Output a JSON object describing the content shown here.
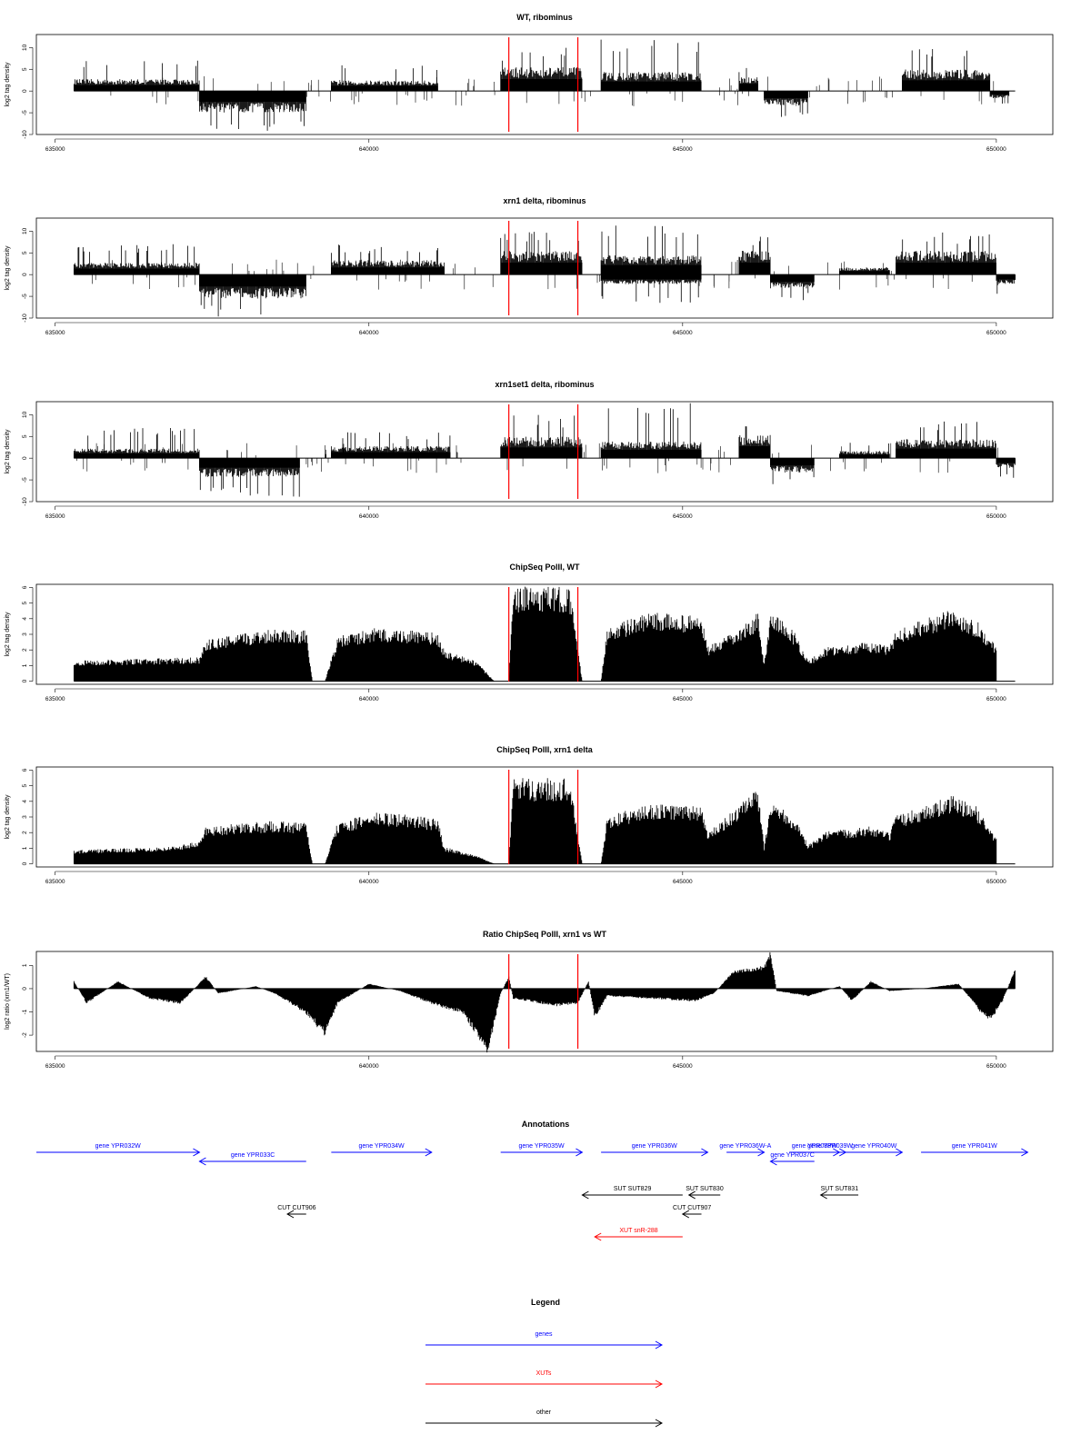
{
  "figure": {
    "annotations_title": "Annotations",
    "legend_title": "Legend"
  },
  "chart_data": [
    {
      "type": "bar",
      "title": "WT, ribominus",
      "ylabel": "log2 tag density",
      "xlim": [
        634700,
        650900
      ],
      "ylim": [
        -10,
        13
      ],
      "yticks": [
        -10,
        -5,
        0,
        5,
        10
      ],
      "xticks": [
        635000,
        640000,
        645000,
        650000
      ],
      "red_lines": [
        642230,
        643330
      ],
      "segments": [
        {
          "start": 635300,
          "end": 637300,
          "strand": "+",
          "mean": 2.5,
          "max": 7
        },
        {
          "start": 637300,
          "end": 639000,
          "strand": "-",
          "mean": 4.5,
          "max": 10
        },
        {
          "start": 639400,
          "end": 641100,
          "strand": "+",
          "mean": 2.2,
          "max": 6
        },
        {
          "start": 642100,
          "end": 643400,
          "strand": "+",
          "mean": 5,
          "max": 10
        },
        {
          "start": 643700,
          "end": 645300,
          "strand": "+",
          "mean": 4,
          "max": 12
        },
        {
          "start": 645900,
          "end": 646200,
          "strand": "+",
          "mean": 3,
          "max": 6
        },
        {
          "start": 646300,
          "end": 647000,
          "strand": "-",
          "mean": 3,
          "max": 6
        },
        {
          "start": 648500,
          "end": 649900,
          "strand": "+",
          "mean": 4.5,
          "max": 10
        },
        {
          "start": 649900,
          "end": 650200,
          "strand": "-",
          "mean": 1.5,
          "max": 3
        }
      ]
    },
    {
      "type": "bar",
      "title": "xrn1 delta, ribominus",
      "ylabel": "log2 tag density",
      "xlim": [
        634700,
        650900
      ],
      "ylim": [
        -10,
        13
      ],
      "yticks": [
        -10,
        -5,
        0,
        5,
        10
      ],
      "xticks": [
        635000,
        640000,
        645000,
        650000
      ],
      "red_lines": [
        642230,
        643330
      ],
      "segments": [
        {
          "start": 635300,
          "end": 637300,
          "strand": "+",
          "mean": 2.5,
          "max": 7
        },
        {
          "start": 637300,
          "end": 639000,
          "strand": "-",
          "mean": 5,
          "max": 10
        },
        {
          "start": 639400,
          "end": 641200,
          "strand": "+",
          "mean": 3,
          "max": 7
        },
        {
          "start": 642100,
          "end": 643400,
          "strand": "+",
          "mean": 5,
          "max": 10
        },
        {
          "start": 643700,
          "end": 645300,
          "strand": "+",
          "mean": 4,
          "max": 12
        },
        {
          "start": 643700,
          "end": 645300,
          "strand": "-",
          "mean": 2,
          "max": 7
        },
        {
          "start": 645900,
          "end": 646400,
          "strand": "+",
          "mean": 5,
          "max": 9
        },
        {
          "start": 646400,
          "end": 647100,
          "strand": "-",
          "mean": 3,
          "max": 6
        },
        {
          "start": 647500,
          "end": 648300,
          "strand": "+",
          "mean": 1.5,
          "max": 4
        },
        {
          "start": 648400,
          "end": 650000,
          "strand": "+",
          "mean": 5,
          "max": 10
        },
        {
          "start": 650000,
          "end": 650300,
          "strand": "-",
          "mean": 2,
          "max": 5
        }
      ]
    },
    {
      "type": "bar",
      "title": "xrn1set1 delta, ribominus",
      "ylabel": "log2 tag density",
      "xlim": [
        634700,
        650900
      ],
      "ylim": [
        -10,
        13
      ],
      "yticks": [
        -10,
        -5,
        0,
        5,
        10
      ],
      "xticks": [
        635000,
        640000,
        645000,
        650000
      ],
      "red_lines": [
        642230,
        643330
      ],
      "segments": [
        {
          "start": 635300,
          "end": 637300,
          "strand": "+",
          "mean": 2,
          "max": 7
        },
        {
          "start": 637300,
          "end": 638900,
          "strand": "-",
          "mean": 4,
          "max": 9
        },
        {
          "start": 639400,
          "end": 641300,
          "strand": "+",
          "mean": 2.5,
          "max": 6
        },
        {
          "start": 642100,
          "end": 643400,
          "strand": "+",
          "mean": 4.5,
          "max": 10
        },
        {
          "start": 643700,
          "end": 645300,
          "strand": "+",
          "mean": 3.5,
          "max": 13
        },
        {
          "start": 645900,
          "end": 646400,
          "strand": "+",
          "mean": 5,
          "max": 9
        },
        {
          "start": 646400,
          "end": 647100,
          "strand": "-",
          "mean": 3,
          "max": 6
        },
        {
          "start": 647500,
          "end": 648300,
          "strand": "+",
          "mean": 1.5,
          "max": 4
        },
        {
          "start": 648400,
          "end": 650000,
          "strand": "+",
          "mean": 4,
          "max": 9
        },
        {
          "start": 650000,
          "end": 650300,
          "strand": "-",
          "mean": 2,
          "max": 5
        }
      ]
    },
    {
      "type": "bar",
      "title": "ChipSeq PolII, WT",
      "ylabel": "log2 tag density",
      "xlim": [
        634700,
        650900
      ],
      "ylim": [
        -0.2,
        6.2
      ],
      "yticks": [
        0,
        1,
        2,
        3,
        4,
        5,
        6
      ],
      "xticks": [
        635000,
        640000,
        645000,
        650000
      ],
      "red_lines": [
        642230,
        643330
      ],
      "profile": [
        [
          635300,
          1.2
        ],
        [
          637300,
          1.4
        ],
        [
          637400,
          2.4
        ],
        [
          638500,
          3.1
        ],
        [
          639000,
          3.0
        ],
        [
          639100,
          0
        ],
        [
          639300,
          0
        ],
        [
          639500,
          2.6
        ],
        [
          640100,
          3.1
        ],
        [
          640600,
          3.0
        ],
        [
          641100,
          2.8
        ],
        [
          641200,
          1.8
        ],
        [
          641700,
          1.2
        ],
        [
          642000,
          0
        ],
        [
          642230,
          0
        ],
        [
          642300,
          5.5
        ],
        [
          643200,
          5.5
        ],
        [
          643400,
          0
        ],
        [
          643700,
          0
        ],
        [
          643800,
          3.2
        ],
        [
          644500,
          4.0
        ],
        [
          645300,
          3.8
        ],
        [
          645400,
          2.0
        ],
        [
          645900,
          3.0
        ],
        [
          646200,
          4.0
        ],
        [
          646300,
          1.0
        ],
        [
          646400,
          4.2
        ],
        [
          646800,
          2.8
        ],
        [
          647000,
          1.2
        ],
        [
          647300,
          2.0
        ],
        [
          648000,
          2.3
        ],
        [
          648300,
          2.0
        ],
        [
          648400,
          3.0
        ],
        [
          649300,
          4.2
        ],
        [
          649700,
          3.5
        ],
        [
          650000,
          2.0
        ],
        [
          650000,
          0
        ],
        [
          650300,
          0
        ]
      ]
    },
    {
      "type": "bar",
      "title": "ChipSeq PolII, xrn1 delta",
      "ylabel": "log2 tag density",
      "xlim": [
        634700,
        650900
      ],
      "ylim": [
        -0.2,
        6.2
      ],
      "yticks": [
        0,
        1,
        2,
        3,
        4,
        5,
        6
      ],
      "xticks": [
        635000,
        640000,
        645000,
        650000
      ],
      "red_lines": [
        642230,
        643330
      ],
      "profile": [
        [
          635300,
          0.8
        ],
        [
          636800,
          1.0
        ],
        [
          637300,
          1.3
        ],
        [
          637400,
          2.2
        ],
        [
          638500,
          2.5
        ],
        [
          639000,
          2.4
        ],
        [
          639100,
          0
        ],
        [
          639300,
          0
        ],
        [
          639500,
          2.4
        ],
        [
          640100,
          3.0
        ],
        [
          640600,
          2.9
        ],
        [
          641100,
          2.6
        ],
        [
          641200,
          1.0
        ],
        [
          641700,
          0.5
        ],
        [
          642000,
          0
        ],
        [
          642230,
          0
        ],
        [
          642300,
          5.0
        ],
        [
          643200,
          5.0
        ],
        [
          643400,
          0
        ],
        [
          643700,
          0
        ],
        [
          643800,
          2.8
        ],
        [
          644500,
          3.5
        ],
        [
          645300,
          3.4
        ],
        [
          645400,
          1.8
        ],
        [
          645900,
          3.4
        ],
        [
          646200,
          4.4
        ],
        [
          646300,
          1.0
        ],
        [
          646400,
          3.9
        ],
        [
          646800,
          2.6
        ],
        [
          647000,
          1.1
        ],
        [
          647300,
          1.9
        ],
        [
          648000,
          2.2
        ],
        [
          648300,
          1.8
        ],
        [
          648400,
          2.8
        ],
        [
          649300,
          4.0
        ],
        [
          649700,
          3.3
        ],
        [
          650000,
          1.5
        ],
        [
          650000,
          0
        ],
        [
          650300,
          0
        ]
      ]
    },
    {
      "type": "area",
      "title": "Ratio ChipSeq PolII, xrn1 vs WT",
      "ylabel": "log2 ratio (xrn1/WT)",
      "xlim": [
        634700,
        650900
      ],
      "ylim": [
        -2.7,
        1.6
      ],
      "yticks": [
        -2,
        -1,
        0,
        1
      ],
      "xticks": [
        635000,
        640000,
        645000,
        650000
      ],
      "red_lines": [
        642230,
        643330
      ],
      "profile": [
        [
          635300,
          0.3
        ],
        [
          635500,
          -0.6
        ],
        [
          636000,
          0.3
        ],
        [
          636500,
          -0.4
        ],
        [
          637000,
          -0.6
        ],
        [
          637400,
          0.5
        ],
        [
          637600,
          -0.2
        ],
        [
          638200,
          0.1
        ],
        [
          638500,
          -0.2
        ],
        [
          639000,
          -1.0
        ],
        [
          639300,
          -1.9
        ],
        [
          639500,
          -0.6
        ],
        [
          640000,
          0.2
        ],
        [
          640500,
          -0.1
        ],
        [
          641000,
          -0.6
        ],
        [
          641500,
          -1.0
        ],
        [
          641900,
          -2.6
        ],
        [
          642100,
          -0.2
        ],
        [
          642230,
          0.5
        ],
        [
          642300,
          -0.4
        ],
        [
          643000,
          -0.7
        ],
        [
          643330,
          -0.6
        ],
        [
          643500,
          0.3
        ],
        [
          643600,
          -1.2
        ],
        [
          643800,
          -0.3
        ],
        [
          644500,
          -0.4
        ],
        [
          645200,
          -0.5
        ],
        [
          645500,
          -0.2
        ],
        [
          645800,
          0.7
        ],
        [
          646300,
          0.9
        ],
        [
          646400,
          1.5
        ],
        [
          646500,
          -0.1
        ],
        [
          647000,
          -0.3
        ],
        [
          647500,
          0.1
        ],
        [
          647700,
          -0.5
        ],
        [
          648000,
          0.3
        ],
        [
          648300,
          -0.1
        ],
        [
          648800,
          0.0
        ],
        [
          649400,
          0.2
        ],
        [
          649700,
          -0.8
        ],
        [
          649900,
          -1.3
        ],
        [
          650100,
          -0.5
        ],
        [
          650300,
          0.8
        ]
      ]
    }
  ],
  "annotations": {
    "features": [
      {
        "label": "gene YPR032W",
        "color": "#0000ff",
        "start": 634700,
        "end": 637300,
        "strand": "+",
        "row": 0
      },
      {
        "label": "gene YPR033C",
        "color": "#0000ff",
        "start": 637300,
        "end": 639000,
        "strand": "-",
        "row": 1
      },
      {
        "label": "gene YPR034W",
        "color": "#0000ff",
        "start": 639400,
        "end": 641000,
        "strand": "+",
        "row": 0
      },
      {
        "label": "gene YPR035W",
        "color": "#0000ff",
        "start": 642100,
        "end": 643400,
        "strand": "+",
        "row": 0
      },
      {
        "label": "gene YPR036W",
        "color": "#0000ff",
        "start": 643700,
        "end": 645400,
        "strand": "+",
        "row": 0
      },
      {
        "label": "gene YPR036W-A",
        "color": "#0000ff",
        "start": 645700,
        "end": 646300,
        "strand": "+",
        "row": 0
      },
      {
        "label": "gene YPR037C",
        "color": "#0000ff",
        "start": 646400,
        "end": 647100,
        "strand": "-",
        "row": 1
      },
      {
        "label": "gene YPR038W",
        "color": "#0000ff",
        "start": 646700,
        "end": 647500,
        "strand": "+",
        "row": 0
      },
      {
        "label": "gene YPR039W",
        "color": "#0000ff",
        "start": 647100,
        "end": 647600,
        "strand": "+",
        "row": 0
      },
      {
        "label": "gene YPR040W",
        "color": "#0000ff",
        "start": 647600,
        "end": 648500,
        "strand": "+",
        "row": 0
      },
      {
        "label": "gene YPR041W",
        "color": "#0000ff",
        "start": 648800,
        "end": 650500,
        "strand": "+",
        "row": 0
      },
      {
        "label": "SUT SUT829",
        "color": "#000000",
        "start": 643400,
        "end": 645000,
        "strand": "-",
        "row": 2
      },
      {
        "label": "SUT SUT830",
        "color": "#000000",
        "start": 645100,
        "end": 645600,
        "strand": "-",
        "row": 2
      },
      {
        "label": "SUT SUT831",
        "color": "#000000",
        "start": 647200,
        "end": 647800,
        "strand": "-",
        "row": 2
      },
      {
        "label": "CUT CUT906",
        "color": "#000000",
        "start": 638700,
        "end": 639000,
        "strand": "-",
        "row": 3
      },
      {
        "label": "CUT CUT907",
        "color": "#000000",
        "start": 645000,
        "end": 645300,
        "strand": "-",
        "row": 3
      },
      {
        "label": "XUT snR-288",
        "color": "#ff0000",
        "start": 643600,
        "end": 645000,
        "strand": "-",
        "row": 4
      }
    ]
  },
  "legend": {
    "items": [
      {
        "label": "genes",
        "color": "#0000ff"
      },
      {
        "label": "XUTs",
        "color": "#ff0000"
      },
      {
        "label": "other",
        "color": "#000000"
      }
    ]
  }
}
